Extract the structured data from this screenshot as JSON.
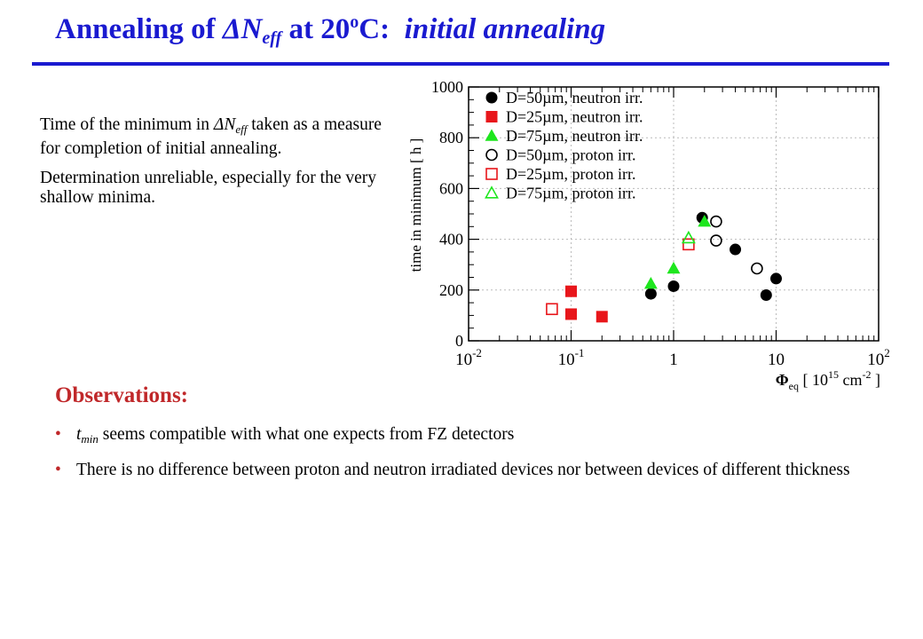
{
  "title": {
    "prefix": "Annealing of ",
    "delta": "ΔN",
    "sub": "eff",
    "middle": " at 20",
    "sup": "o",
    "suffix": "C:  ",
    "italic": "initial annealing"
  },
  "intro": {
    "p1_a": "Time of the minimum in ",
    "p1_delta": "ΔN",
    "p1_sub": "eff",
    "p1_b": " taken as a measure for completion of initial annealing.",
    "p2": "Determination unreliable, especially for the very shallow minima."
  },
  "observations": {
    "heading": "Observations:",
    "b1_var": "t",
    "b1_sub": "min",
    "b1_text": " seems compatible with what one expects from FZ detectors",
    "b2_text": "There is no difference between proton and neutron irradiated devices nor between devices of different thickness"
  },
  "colors": {
    "title": "#1a1ad0",
    "accent": "#c0282a",
    "neutron_50": "#000000",
    "neutron_25": "#e8161b",
    "neutron_75": "#1ee61e",
    "proton_50": "#000000",
    "proton_25": "#e8161b",
    "proton_75": "#1ee61e"
  },
  "chart_data": {
    "type": "scatter",
    "ylabel": "time in minimum   [ h ]",
    "xlabel_main": "Φ",
    "xlabel_sub": "eq",
    "xlabel_unit_pre": "[ 10",
    "xlabel_unit_sup": "15",
    "xlabel_unit_mid": " cm",
    "xlabel_unit_sup2": "-2",
    "xlabel_unit_post": " ]",
    "xscale": "log",
    "xlim": [
      0.01,
      100
    ],
    "ylim": [
      0,
      1000
    ],
    "grid": true,
    "legend_position": "top-left",
    "x_ticks": [
      {
        "v": 0.01,
        "base": "10",
        "exp": "-2"
      },
      {
        "v": 0.1,
        "base": "10",
        "exp": "-1"
      },
      {
        "v": 1,
        "base": "1",
        "exp": ""
      },
      {
        "v": 10,
        "base": "10",
        "exp": ""
      },
      {
        "v": 100,
        "base": "10",
        "exp": "2"
      }
    ],
    "y_ticks": [
      0,
      200,
      400,
      600,
      800,
      1000
    ],
    "series": [
      {
        "name": "D=50µm, neutron irr.",
        "marker": "circle",
        "filled": true,
        "color": "#000000",
        "points": [
          [
            0.6,
            185
          ],
          [
            1.0,
            215
          ],
          [
            1.9,
            485
          ],
          [
            4.0,
            360
          ],
          [
            8.0,
            180
          ],
          [
            10.0,
            245
          ]
        ]
      },
      {
        "name": "D=25µm, neutron irr.",
        "marker": "square",
        "filled": true,
        "color": "#e8161b",
        "points": [
          [
            0.1,
            195
          ],
          [
            0.1,
            105
          ],
          [
            0.2,
            95
          ]
        ]
      },
      {
        "name": "D=75µm, neutron irr.",
        "marker": "triangle",
        "filled": true,
        "color": "#1ee61e",
        "points": [
          [
            0.6,
            225
          ],
          [
            1.0,
            285
          ],
          [
            2.0,
            470
          ]
        ]
      },
      {
        "name": "D=50µm, proton irr.",
        "marker": "circle",
        "filled": false,
        "color": "#000000",
        "points": [
          [
            2.6,
            470
          ],
          [
            2.6,
            395
          ],
          [
            6.5,
            285
          ]
        ]
      },
      {
        "name": "D=25µm, proton irr.",
        "marker": "square",
        "filled": false,
        "color": "#e8161b",
        "points": [
          [
            0.065,
            125
          ],
          [
            1.4,
            380
          ]
        ]
      },
      {
        "name": "D=75µm, proton irr.",
        "marker": "triangle",
        "filled": false,
        "color": "#1ee61e",
        "points": [
          [
            1.4,
            405
          ]
        ]
      }
    ]
  }
}
